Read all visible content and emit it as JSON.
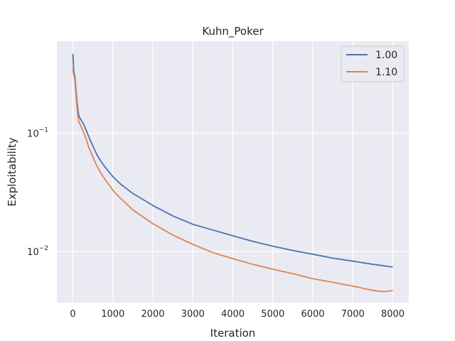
{
  "chart_data": {
    "type": "line",
    "title": "Kuhn_Poker",
    "xlabel": "Iteration",
    "ylabel": "Exploitability",
    "yscale": "log",
    "xlim": [
      -400,
      8400
    ],
    "ylim": [
      0.0037,
      0.6
    ],
    "x_ticks": [
      0,
      1000,
      2000,
      3000,
      4000,
      5000,
      6000,
      7000,
      8000
    ],
    "y_ticks": [
      {
        "value": 0.1,
        "base": "10",
        "exp": "−1"
      },
      {
        "value": 0.01,
        "base": "10",
        "exp": "−2"
      }
    ],
    "grid": true,
    "background": "#eaeaf2",
    "legend_position": "top-right",
    "series": [
      {
        "name": "1.00",
        "color": "#4c72b0",
        "x": [
          0,
          10,
          25,
          50,
          75,
          100,
          125,
          150,
          200,
          250,
          300,
          400,
          500,
          600,
          700,
          800,
          1000,
          1200,
          1500,
          2000,
          2500,
          3000,
          3500,
          4000,
          4500,
          5000,
          5500,
          6000,
          6500,
          7000,
          7500,
          8000
        ],
        "y": [
          0.47,
          0.4,
          0.33,
          0.3,
          0.24,
          0.19,
          0.16,
          0.14,
          0.13,
          0.122,
          0.113,
          0.093,
          0.078,
          0.066,
          0.058,
          0.052,
          0.043,
          0.037,
          0.031,
          0.0245,
          0.02,
          0.017,
          0.0152,
          0.0136,
          0.0122,
          0.0111,
          0.0102,
          0.0095,
          0.0088,
          0.0083,
          0.0078,
          0.0074
        ]
      },
      {
        "name": "1.10",
        "color": "#dd8452",
        "x": [
          0,
          10,
          25,
          50,
          75,
          100,
          125,
          150,
          200,
          250,
          300,
          400,
          500,
          600,
          700,
          800,
          1000,
          1200,
          1500,
          2000,
          2500,
          3000,
          3500,
          4000,
          4500,
          5000,
          5500,
          6000,
          6500,
          7000,
          7500,
          7700,
          7850,
          8000
        ],
        "y": [
          0.36,
          0.33,
          0.31,
          0.28,
          0.22,
          0.17,
          0.14,
          0.125,
          0.115,
          0.105,
          0.096,
          0.076,
          0.063,
          0.053,
          0.046,
          0.041,
          0.033,
          0.028,
          0.0225,
          0.0172,
          0.0138,
          0.0115,
          0.0098,
          0.0087,
          0.0078,
          0.0071,
          0.0065,
          0.0059,
          0.0055,
          0.0051,
          0.0047,
          0.0046,
          0.0046,
          0.0047
        ]
      }
    ]
  }
}
